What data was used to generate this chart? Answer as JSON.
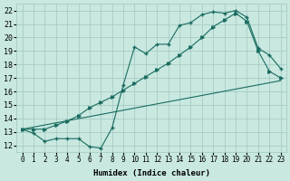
{
  "title": "",
  "xlabel": "Humidex (Indice chaleur)",
  "ylabel": "",
  "bg_color": "#c8e8e0",
  "grid_color": "#a0c8c0",
  "line_color": "#1a6b60",
  "xlim": [
    -0.5,
    23.5
  ],
  "ylim": [
    11.5,
    22.5
  ],
  "xticks": [
    0,
    1,
    2,
    3,
    4,
    5,
    6,
    7,
    8,
    9,
    10,
    11,
    12,
    13,
    14,
    15,
    16,
    17,
    18,
    19,
    20,
    21,
    22,
    23
  ],
  "yticks": [
    12,
    13,
    14,
    15,
    16,
    17,
    18,
    19,
    20,
    21,
    22
  ],
  "line1_x": [
    0,
    1,
    2,
    3,
    4,
    5,
    6,
    7,
    8,
    9,
    10,
    11,
    12,
    13,
    14,
    15,
    16,
    17,
    18,
    19,
    20,
    21,
    22,
    23
  ],
  "line1_y": [
    13.2,
    12.9,
    12.3,
    12.5,
    12.5,
    12.5,
    11.9,
    11.8,
    13.3,
    16.5,
    19.3,
    18.8,
    19.5,
    19.5,
    20.9,
    21.1,
    21.7,
    21.9,
    21.8,
    22.0,
    21.5,
    19.2,
    18.7,
    17.7
  ],
  "line2_x": [
    0,
    1,
    2,
    3,
    4,
    5,
    6,
    7,
    8,
    9,
    10,
    11,
    12,
    13,
    14,
    15,
    16,
    17,
    18,
    19,
    20,
    21,
    22,
    23
  ],
  "line2_y": [
    13.2,
    13.2,
    13.2,
    13.5,
    13.8,
    14.2,
    14.8,
    15.2,
    15.6,
    16.1,
    16.6,
    17.1,
    17.6,
    18.1,
    18.7,
    19.3,
    20.0,
    20.8,
    21.3,
    21.8,
    21.2,
    19.0,
    17.5,
    17.0
  ],
  "line3_x": [
    0,
    23
  ],
  "line3_y": [
    13.2,
    16.8
  ]
}
